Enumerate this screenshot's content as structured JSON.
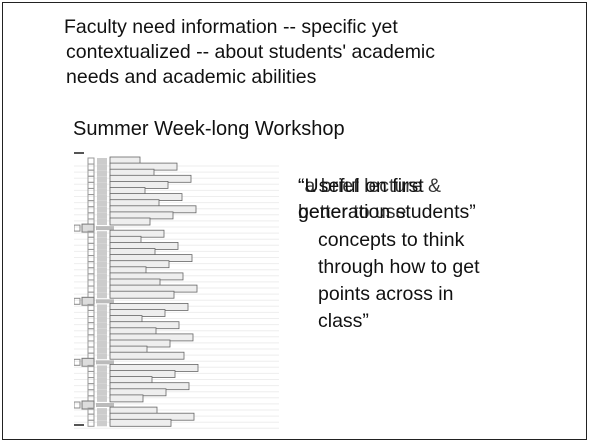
{
  "slide": {
    "title_lines": [
      "Faculty need information -- specific yet",
      "contextualized -- about students' academic",
      "needs and academic abilities"
    ],
    "subtitle": "Summer Week-long Workshop",
    "quote_a": [
      "“a brief lecture &",
      "better to use"
    ],
    "quote_b": [
      "“Useful on first",
      "generation students”",
      "concepts to think",
      "through how to get",
      "points across in",
      "class”"
    ]
  }
}
